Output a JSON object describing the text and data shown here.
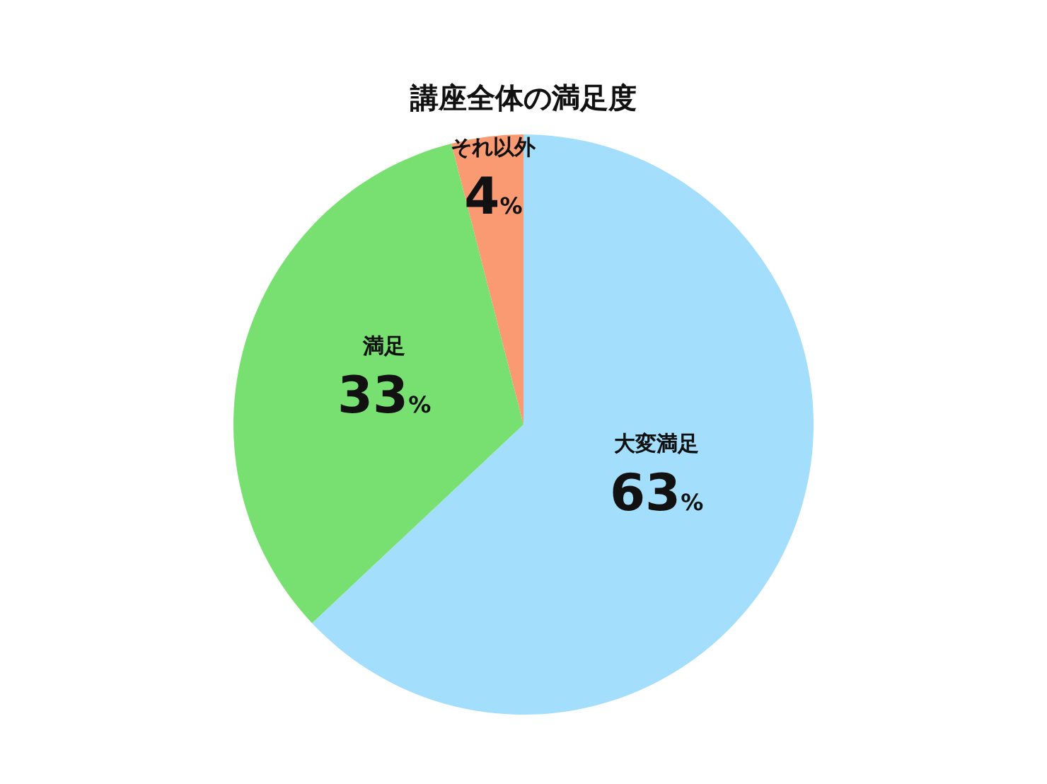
{
  "chart_data": {
    "type": "pie",
    "title": "講座全体の満足度",
    "categories": [
      "大変満足",
      "満足",
      "それ以外"
    ],
    "values": [
      63,
      33,
      4
    ],
    "colors": [
      "#a3dffc",
      "#77e070",
      "#f99a72"
    ],
    "value_labels": [
      "63%",
      "33%",
      "4%"
    ]
  }
}
